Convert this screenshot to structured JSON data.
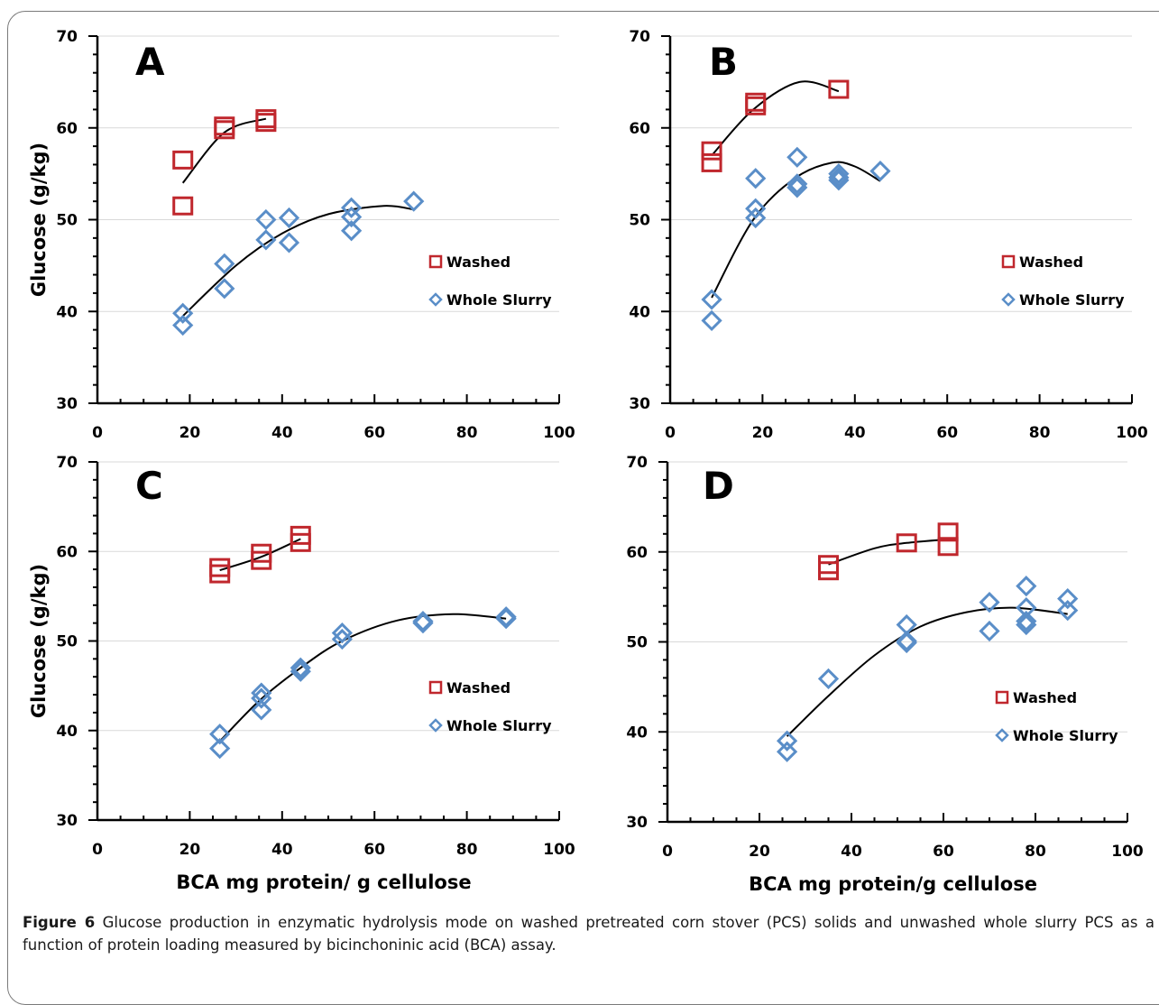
{
  "caption": {
    "label": "Figure 6",
    "text": "Glucose production in enzymatic hydrolysis mode on washed pretreated corn stover (PCS) solids and unwashed whole slurry PCS as a function of protein loading measured by bicinchoninic acid (BCA) assay."
  },
  "colors": {
    "washed": "#c0272d",
    "whole_slurry": "#5a8ec8",
    "trend": "#000000",
    "grid": "#d9d9d9"
  },
  "chart_data": [
    {
      "panel": "A",
      "type": "scatter",
      "ylabel": "Glucose (g/kg)",
      "xlabel": "",
      "xlim": [
        0,
        100
      ],
      "ylim": [
        30,
        70
      ],
      "xticks": [
        0,
        20,
        40,
        60,
        80,
        100
      ],
      "yticks": [
        30,
        40,
        50,
        60,
        70
      ],
      "grid": "horizontal",
      "legend": "right",
      "series": [
        {
          "name": "Washed",
          "marker": "square",
          "x": [
            18.5,
            18.5,
            27.5,
            27.5,
            36.5,
            36.5
          ],
          "y": [
            56.5,
            51.5,
            60.2,
            59.8,
            61.0,
            60.6
          ],
          "trend": [
            [
              18.5,
              54.0
            ],
            [
              27.5,
              59.5
            ],
            [
              36.5,
              61.0
            ]
          ]
        },
        {
          "name": "Whole Slurry",
          "marker": "diamond",
          "x": [
            18.5,
            18.5,
            27.5,
            27.5,
            36.5,
            36.5,
            41.5,
            41.5,
            55.0,
            55.0,
            55.0,
            68.5
          ],
          "y": [
            39.8,
            38.5,
            45.2,
            42.5,
            50.0,
            47.8,
            50.2,
            47.5,
            51.3,
            50.3,
            48.8,
            52.0
          ],
          "trend": [
            [
              18.5,
              39.5
            ],
            [
              30,
              45.0
            ],
            [
              40,
              48.5
            ],
            [
              50,
              50.6
            ],
            [
              62,
              51.5
            ],
            [
              68.5,
              51.1
            ]
          ]
        }
      ]
    },
    {
      "panel": "B",
      "type": "scatter",
      "ylabel": "",
      "xlabel": "",
      "xlim": [
        0,
        100
      ],
      "ylim": [
        30,
        70
      ],
      "xticks": [
        0,
        20,
        40,
        60,
        80,
        100
      ],
      "yticks": [
        30,
        40,
        50,
        60,
        70
      ],
      "grid": "horizontal",
      "legend": "right",
      "series": [
        {
          "name": "Washed",
          "marker": "square",
          "x": [
            9,
            9,
            18.5,
            18.5,
            36.5
          ],
          "y": [
            57.5,
            56.2,
            62.8,
            62.4,
            64.2
          ],
          "trend": [
            [
              9,
              57.0
            ],
            [
              18,
              62.0
            ],
            [
              28,
              65.0
            ],
            [
              36.5,
              64.0
            ]
          ]
        },
        {
          "name": "Whole Slurry",
          "marker": "diamond",
          "x": [
            9,
            9,
            18.5,
            18.5,
            18.5,
            27.5,
            27.5,
            27.5,
            36.5,
            36.5,
            36.5,
            45.5
          ],
          "y": [
            41.3,
            39.0,
            54.5,
            51.2,
            50.2,
            56.8,
            53.9,
            53.5,
            55.0,
            54.6,
            54.3,
            55.3
          ],
          "trend": [
            [
              9,
              41.5
            ],
            [
              18,
              50.0
            ],
            [
              27,
              54.5
            ],
            [
              35,
              56.2
            ],
            [
              40,
              55.8
            ],
            [
              45.5,
              54.2
            ]
          ]
        }
      ]
    },
    {
      "panel": "C",
      "type": "scatter",
      "ylabel": "Glucose (g/kg)",
      "xlabel": "BCA  mg protein/ g cellulose",
      "xlim": [
        0,
        100
      ],
      "ylim": [
        30,
        70
      ],
      "xticks": [
        0,
        20,
        40,
        60,
        80,
        100
      ],
      "yticks": [
        30,
        40,
        50,
        60,
        70
      ],
      "grid": "horizontal",
      "legend": "right",
      "series": [
        {
          "name": "Washed",
          "marker": "square",
          "x": [
            26.5,
            26.5,
            35.5,
            35.5,
            44,
            44
          ],
          "y": [
            58.2,
            57.5,
            59.8,
            59.0,
            61.8,
            61.0
          ],
          "trend": [
            [
              26.5,
              57.9
            ],
            [
              35.5,
              59.4
            ],
            [
              44,
              61.4
            ]
          ]
        },
        {
          "name": "Whole Slurry",
          "marker": "diamond",
          "x": [
            26.5,
            26.5,
            35.5,
            35.5,
            35.5,
            44,
            44,
            53,
            53,
            70.5,
            70.5,
            88.5,
            88.5
          ],
          "y": [
            39.6,
            38.0,
            44.2,
            43.6,
            42.3,
            47.0,
            46.6,
            50.9,
            50.2,
            52.2,
            52.0,
            52.7,
            52.5
          ],
          "trend": [
            [
              26.5,
              38.8
            ],
            [
              35,
              43.3
            ],
            [
              44,
              47.0
            ],
            [
              53,
              50.0
            ],
            [
              65,
              52.3
            ],
            [
              77,
              53.0
            ],
            [
              88.5,
              52.5
            ]
          ]
        }
      ]
    },
    {
      "panel": "D",
      "type": "scatter",
      "ylabel": "",
      "xlabel": "BCA mg protein/g cellulose",
      "xlim": [
        0,
        100
      ],
      "ylim": [
        30,
        70
      ],
      "xticks": [
        0,
        20,
        40,
        60,
        80,
        100
      ],
      "yticks": [
        30,
        40,
        50,
        60,
        70
      ],
      "grid": "horizontal",
      "legend": "right",
      "series": [
        {
          "name": "Washed",
          "marker": "square",
          "x": [
            35,
            35,
            52,
            61,
            61
          ],
          "y": [
            58.6,
            57.9,
            61.0,
            62.2,
            60.6
          ],
          "trend": [
            [
              35,
              58.6
            ],
            [
              45,
              60.4
            ],
            [
              52,
              61.0
            ],
            [
              61,
              61.4
            ]
          ]
        },
        {
          "name": "Whole Slurry",
          "marker": "diamond",
          "x": [
            26,
            26,
            35,
            52,
            52,
            52,
            70,
            70,
            78,
            78,
            78,
            78,
            87,
            87
          ],
          "y": [
            39.0,
            37.8,
            45.9,
            51.9,
            50.1,
            49.9,
            54.4,
            51.2,
            56.2,
            53.8,
            52.3,
            51.9,
            54.8,
            53.5
          ],
          "trend": [
            [
              26,
              39.5
            ],
            [
              35,
              44.0
            ],
            [
              45,
              48.5
            ],
            [
              55,
              51.7
            ],
            [
              65,
              53.3
            ],
            [
              75,
              53.8
            ],
            [
              87,
              53.1
            ]
          ]
        }
      ]
    }
  ]
}
